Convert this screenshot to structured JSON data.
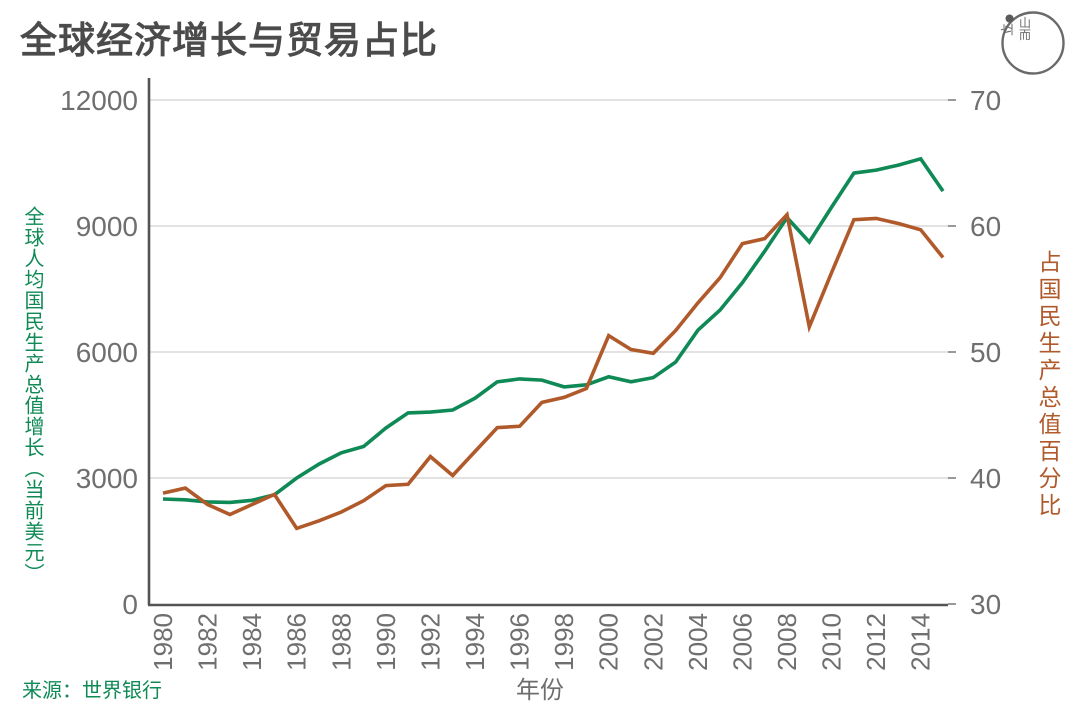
{
  "header": {
    "title": "全球经济增长与贸易占比",
    "logo": {
      "part_left": "立",
      "part_top": "山",
      "part_bottom": "而"
    }
  },
  "chart_data": {
    "type": "line",
    "title": "全球经济增长与贸易占比",
    "xlabel": "年份",
    "source": "来源：世界银行",
    "grid": true,
    "legend": "none",
    "x": [
      1980,
      1981,
      1982,
      1983,
      1984,
      1985,
      1986,
      1987,
      1988,
      1989,
      1990,
      1991,
      1992,
      1993,
      1994,
      1995,
      1996,
      1997,
      1998,
      1999,
      2000,
      2001,
      2002,
      2003,
      2004,
      2005,
      2006,
      2007,
      2008,
      2009,
      2010,
      2011,
      2012,
      2013,
      2014,
      2015
    ],
    "x_tick_labels": [
      "1980",
      "1982",
      "1984",
      "1986",
      "1988",
      "1990",
      "1992",
      "1994",
      "1996",
      "1998",
      "2000",
      "2002",
      "2004",
      "2006",
      "2008",
      "2010",
      "2012",
      "2014"
    ],
    "left_axis": {
      "label": "全球人均国民生产总值增长（当前美元）",
      "ticks": [
        0,
        3000,
        6000,
        9000,
        12000
      ],
      "range": [
        0,
        12000
      ],
      "color": "#0f8a56"
    },
    "right_axis": {
      "label": "占国民生产总值百分比",
      "ticks": [
        30,
        40,
        50,
        60,
        70
      ],
      "range": [
        30,
        70
      ],
      "color": "#b0592a"
    },
    "series": [
      {
        "name": "全球人均国民生产总值增长（当前美元）",
        "axis": "left",
        "color": "#0f8a56",
        "values": [
          2500,
          2480,
          2430,
          2420,
          2470,
          2600,
          3000,
          3330,
          3600,
          3750,
          4190,
          4550,
          4570,
          4620,
          4900,
          5290,
          5360,
          5330,
          5170,
          5220,
          5410,
          5290,
          5390,
          5760,
          6520,
          7000,
          7650,
          8400,
          9200,
          8620,
          9450,
          10260,
          10330,
          10450,
          10600,
          9830
        ]
      },
      {
        "name": "占国民生产总值百分比",
        "axis": "right",
        "color": "#b0592a",
        "values": [
          38.8,
          39.2,
          37.9,
          37.1,
          37.9,
          38.7,
          36.0,
          36.6,
          37.3,
          38.2,
          39.4,
          39.5,
          41.7,
          40.2,
          42.1,
          44.0,
          44.1,
          46.0,
          46.4,
          47.1,
          51.3,
          50.2,
          49.9,
          51.7,
          53.9,
          55.9,
          58.6,
          59.0,
          60.9,
          52.0,
          56.3,
          60.5,
          60.6,
          60.2,
          59.7,
          57.5
        ]
      }
    ],
    "style": {
      "grid_color": "#d9d9d9",
      "axis_color": "#545454",
      "tick_label_color": "#6f6f6f",
      "line_width": 3.6
    }
  }
}
